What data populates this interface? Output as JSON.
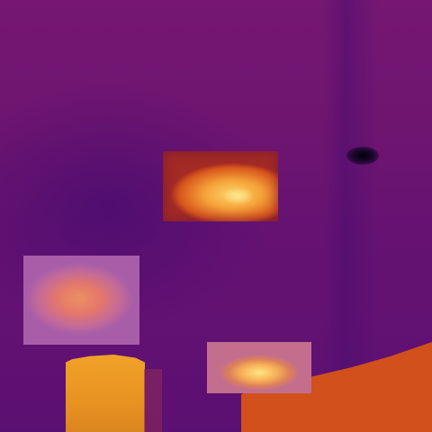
{
  "image": {
    "kind": "thermal-infrared-scene",
    "palette_colors": {
      "background": "#6a1670",
      "cool": "#5f1172",
      "warm": "#d1501c",
      "hot": "#f5a23a",
      "hottest": "#fcd76a",
      "coldest": "#000004"
    }
  }
}
